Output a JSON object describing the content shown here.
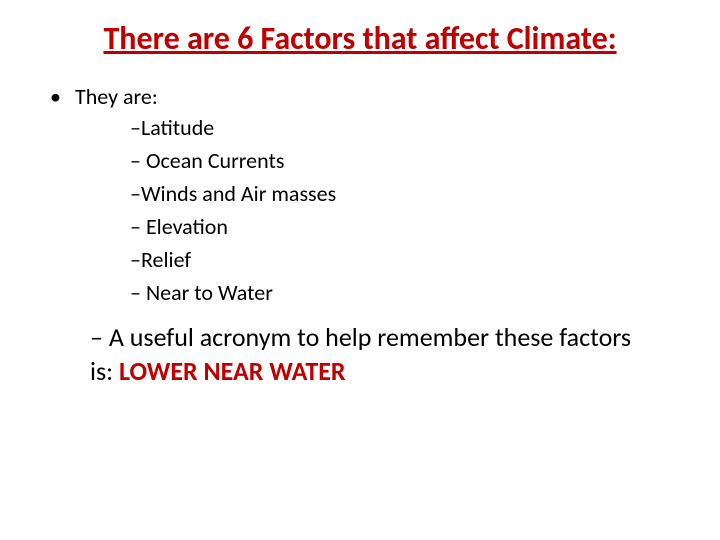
{
  "title": "There are 6 Factors that affect Climate:",
  "title_color": "#c00000",
  "title_fontsize": 32,
  "intro": {
    "bullet": "•",
    "text": "They are:"
  },
  "factors": [
    {
      "dash": "–",
      "text": "Latitude"
    },
    {
      "dash": "–",
      "text": " Ocean Currents"
    },
    {
      "dash": "–",
      "text": "Winds and Air masses"
    },
    {
      "dash": "–",
      "text": " Elevation"
    },
    {
      "dash": "–",
      "text": "Relief"
    },
    {
      "dash": "–",
      "text": " Near to Water"
    }
  ],
  "summary": {
    "dash": "–",
    "prefix": " A useful acronym to help remember these factors is: ",
    "emphasis": "LOWER NEAR WATER"
  },
  "colors": {
    "heading": "#c00000",
    "body": "#000000",
    "background": "#ffffff"
  },
  "typography": {
    "title_fontsize": 32,
    "intro_fontsize": 22,
    "factor_fontsize": 22,
    "summary_fontsize": 26,
    "font_family": "Calibri"
  }
}
